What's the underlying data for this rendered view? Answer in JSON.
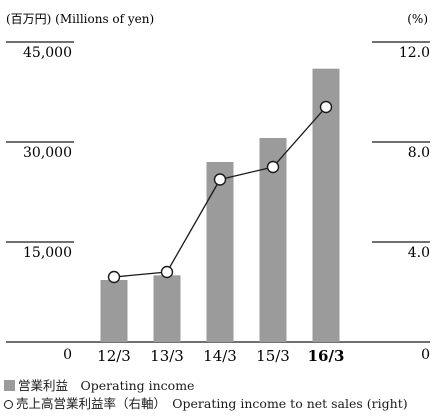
{
  "chart_data": {
    "type": "bar",
    "categories": [
      "12/3",
      "13/3",
      "14/3",
      "15/3",
      "16/3"
    ],
    "highlight_category": "16/3",
    "left_axis": {
      "unit_label": "(百万円) (Millions of yen)",
      "ticks": [
        "0",
        "15,000",
        "30,000",
        "45,000"
      ],
      "ylim": [
        0,
        45000
      ]
    },
    "right_axis": {
      "unit_label": "(%)",
      "ticks": [
        "0",
        "4.0",
        "8.0",
        "12.0"
      ],
      "ylim": [
        0,
        12
      ]
    },
    "series": [
      {
        "name": "営業利益　Operating income",
        "type": "bar",
        "axis": "left",
        "color": "#9b9b9b",
        "values": [
          9300,
          10000,
          27000,
          30600,
          41000
        ]
      },
      {
        "name": "売上高営業利益率（右軸）　Operating income to net sales (right)",
        "type": "line",
        "axis": "right",
        "color": "#1a1a1a",
        "values": [
          2.6,
          2.8,
          6.5,
          7.0,
          9.4
        ]
      }
    ]
  }
}
